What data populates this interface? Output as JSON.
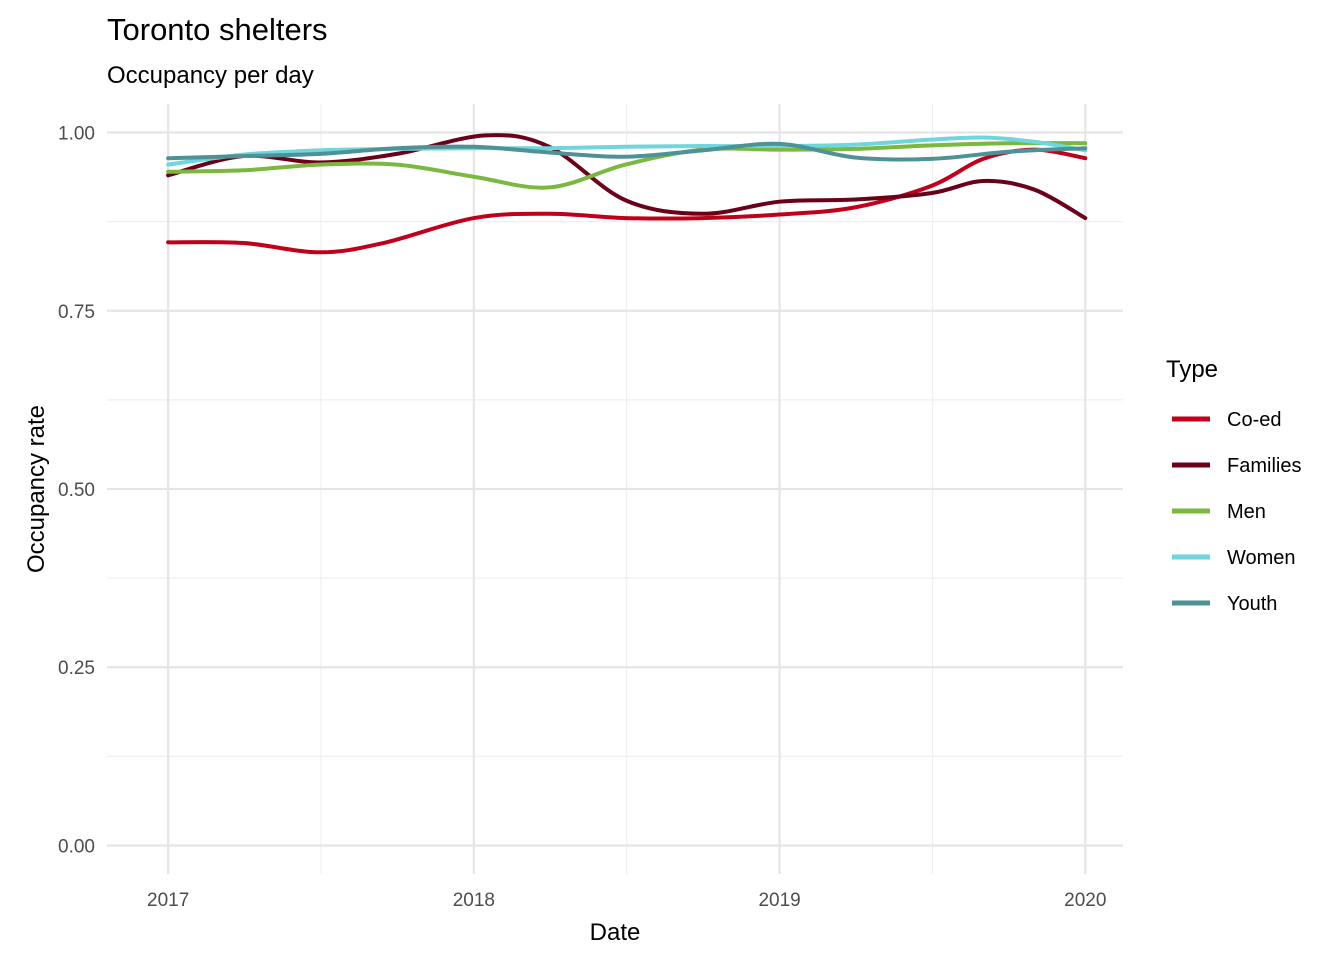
{
  "chart_data": {
    "type": "line",
    "title": "Toronto shelters",
    "subtitle": "Occupancy per day",
    "xlabel": "Date",
    "ylabel": "Occupancy rate",
    "x_scale": "date",
    "xlim": [
      "2016-10-20",
      "2020-02-15"
    ],
    "ylim": [
      -0.04,
      1.04
    ],
    "x_ticks": [
      "2017",
      "2018",
      "2019",
      "2020"
    ],
    "y_ticks": [
      "0.00",
      "0.25",
      "0.50",
      "0.75",
      "1.00"
    ],
    "grid": true,
    "legend": {
      "title": "Type",
      "position": "right"
    },
    "series": [
      {
        "name": "Co-ed",
        "color": "#C0001B",
        "points": [
          [
            "2017-01-01",
            0.846
          ],
          [
            "2017-04-01",
            0.845
          ],
          [
            "2017-07-01",
            0.832
          ],
          [
            "2017-09-15",
            0.845
          ],
          [
            "2018-01-01",
            0.88
          ],
          [
            "2018-04-01",
            0.886
          ],
          [
            "2018-07-01",
            0.88
          ],
          [
            "2018-10-01",
            0.88
          ],
          [
            "2019-01-01",
            0.885
          ],
          [
            "2019-04-01",
            0.895
          ],
          [
            "2019-07-01",
            0.925
          ],
          [
            "2019-09-01",
            0.963
          ],
          [
            "2019-11-01",
            0.976
          ],
          [
            "2020-01-01",
            0.964
          ]
        ]
      },
      {
        "name": "Families",
        "color": "#6B0019",
        "points": [
          [
            "2017-01-01",
            0.94
          ],
          [
            "2017-04-01",
            0.967
          ],
          [
            "2017-07-01",
            0.958
          ],
          [
            "2017-10-01",
            0.97
          ],
          [
            "2018-01-15",
            0.996
          ],
          [
            "2018-04-01",
            0.98
          ],
          [
            "2018-07-01",
            0.905
          ],
          [
            "2018-10-01",
            0.886
          ],
          [
            "2019-01-01",
            0.903
          ],
          [
            "2019-04-01",
            0.906
          ],
          [
            "2019-07-01",
            0.915
          ],
          [
            "2019-09-01",
            0.932
          ],
          [
            "2019-11-01",
            0.92
          ],
          [
            "2020-01-01",
            0.88
          ]
        ]
      },
      {
        "name": "Men",
        "color": "#7AB83F",
        "points": [
          [
            "2017-01-01",
            0.945
          ],
          [
            "2017-04-01",
            0.947
          ],
          [
            "2017-07-01",
            0.955
          ],
          [
            "2017-10-01",
            0.955
          ],
          [
            "2018-01-01",
            0.938
          ],
          [
            "2018-04-01",
            0.923
          ],
          [
            "2018-07-01",
            0.955
          ],
          [
            "2018-10-01",
            0.976
          ],
          [
            "2019-01-01",
            0.976
          ],
          [
            "2019-04-01",
            0.977
          ],
          [
            "2019-07-01",
            0.982
          ],
          [
            "2019-10-01",
            0.985
          ],
          [
            "2020-01-01",
            0.985
          ]
        ]
      },
      {
        "name": "Women",
        "color": "#6ED6DC",
        "points": [
          [
            "2017-01-01",
            0.955
          ],
          [
            "2017-04-01",
            0.969
          ],
          [
            "2017-07-01",
            0.975
          ],
          [
            "2017-10-01",
            0.977
          ],
          [
            "2018-01-01",
            0.978
          ],
          [
            "2018-04-01",
            0.978
          ],
          [
            "2018-07-01",
            0.98
          ],
          [
            "2018-10-01",
            0.981
          ],
          [
            "2019-01-01",
            0.981
          ],
          [
            "2019-04-01",
            0.983
          ],
          [
            "2019-07-01",
            0.99
          ],
          [
            "2019-09-01",
            0.993
          ],
          [
            "2019-11-01",
            0.987
          ],
          [
            "2020-01-01",
            0.975
          ]
        ]
      },
      {
        "name": "Youth",
        "color": "#4E9196",
        "points": [
          [
            "2017-01-01",
            0.964
          ],
          [
            "2017-04-01",
            0.967
          ],
          [
            "2017-07-01",
            0.97
          ],
          [
            "2017-10-01",
            0.978
          ],
          [
            "2018-01-01",
            0.98
          ],
          [
            "2018-04-01",
            0.972
          ],
          [
            "2018-07-01",
            0.966
          ],
          [
            "2018-10-01",
            0.975
          ],
          [
            "2019-01-01",
            0.984
          ],
          [
            "2019-04-01",
            0.965
          ],
          [
            "2019-07-01",
            0.963
          ],
          [
            "2019-10-01",
            0.973
          ],
          [
            "2020-01-01",
            0.978
          ]
        ]
      }
    ]
  }
}
